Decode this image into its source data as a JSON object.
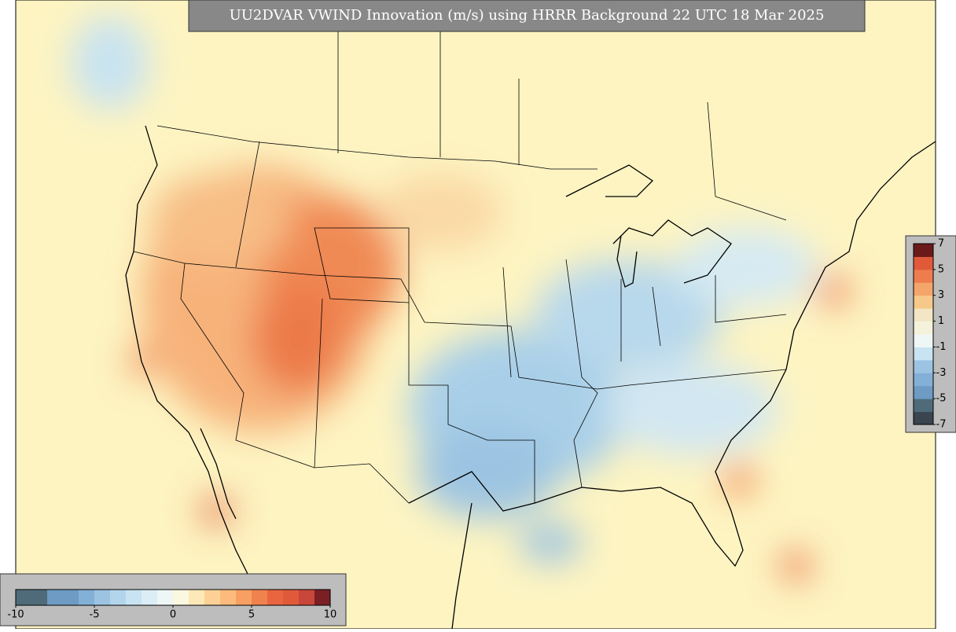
{
  "title": "UU2DVAR VWIND Innovation (m/s) using HRRR Background 22 UTC 18 Mar 2025",
  "colorbars": [
    {
      "orientation": "horizontal",
      "lim": [
        -10,
        10
      ],
      "ticks": [
        -10,
        -5,
        0,
        5,
        10
      ],
      "colors": [
        "#4f6b7a",
        "#4f6b7a",
        "#6d9bc3",
        "#6d9bc3",
        "#83b0d6",
        "#9cc4e2",
        "#b3d5ec",
        "#c8e3f1",
        "#dbeef5",
        "#eef7f5",
        "#fbf8e0",
        "#fde8b8",
        "#fdd196",
        "#fcbb7c",
        "#f8a062",
        "#f0824e",
        "#e8653f",
        "#e05a3a",
        "#c8463a",
        "#7a1f24"
      ]
    },
    {
      "orientation": "vertical",
      "lim": [
        -7,
        7
      ],
      "ticks": [
        7,
        5,
        3,
        1,
        -1,
        -3,
        -5,
        -7
      ],
      "colors": [
        "#3a4550",
        "#4f6b7a",
        "#6d9bc3",
        "#83b0d6",
        "#9cc4e2",
        "#c8e3f1",
        "#eef7f5",
        "#f5f2dc",
        "#f2e6c4",
        "#f6c98a",
        "#f4a66a",
        "#ee7c4d",
        "#e05a3a",
        "#6b1a1a"
      ]
    }
  ]
}
